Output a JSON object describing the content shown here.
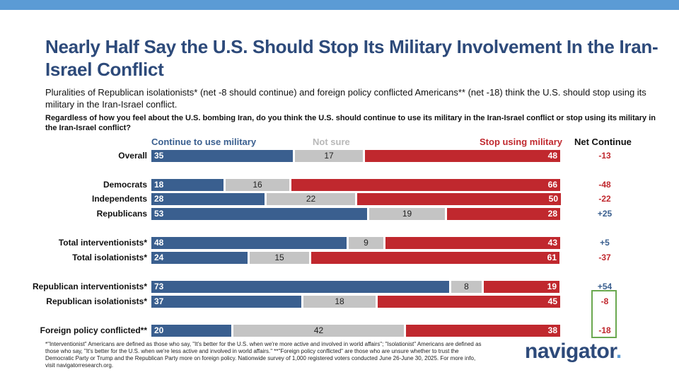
{
  "title": "Nearly Half Say the U.S. Should Stop Its Military Involvement In the Iran-Israel Conflict",
  "subtitle": "Pluralities of Republican isolationists* (net -8 should continue) and foreign policy conflicted Americans** (net -18) think the U.S. should stop using its military in the Iran-Israel conflict.",
  "question": "Regardless of how you feel about the U.S. bombing Iran, do you think the U.S. should continue to use its military in the Iran-Israel conflict or stop using its military in the Iran-Israel conflict?",
  "legend": {
    "continue": "Continue to use military",
    "unsure": "Not sure",
    "stop": "Stop using military",
    "net": "Net Continue"
  },
  "colors": {
    "continue": "#3a5f8f",
    "unsure": "#c4c4c4",
    "stop": "#c0282e",
    "title": "#2d4a7a",
    "highlight": "#6aa84f"
  },
  "chart_data": {
    "type": "bar",
    "orientation": "horizontal-stacked-100",
    "title": "Nearly Half Say the U.S. Should Stop Its Military Involvement In the Iran-Israel Conflict",
    "categories": [
      "Overall",
      "Democrats",
      "Independents",
      "Republicans",
      "Total interventionists*",
      "Total isolationists*",
      "Republican interventionists*",
      "Republican isolationists*",
      "Foreign policy conflicted**"
    ],
    "series": [
      {
        "name": "Continue to use military",
        "values": [
          35,
          18,
          28,
          53,
          48,
          24,
          73,
          37,
          20
        ]
      },
      {
        "name": "Not sure",
        "values": [
          17,
          16,
          22,
          19,
          9,
          15,
          8,
          18,
          42
        ]
      },
      {
        "name": "Stop using military",
        "values": [
          48,
          66,
          50,
          28,
          43,
          61,
          19,
          45,
          38
        ]
      }
    ],
    "net_continue": [
      "-13",
      "-48",
      "-22",
      "+25",
      "+5",
      "-37",
      "+54",
      "-8",
      "-18"
    ],
    "highlighted": [
      "Republican isolationists*",
      "Foreign policy conflicted**"
    ],
    "xlim": [
      0,
      100
    ]
  },
  "footnote": "*\"Interventionist\" Americans are defined as those who say, \"It's better for the U.S. when we're more active and involved in world affairs\"; \"Isolationist\" Americans are defined as those who say, \"It's better for the U.S. when we're less active and involved in world affairs.\" **\"Foreign policy conflicted\" are those who are unsure whether to trust the Democratic Party or Trump and the Republican Party more on foreign policy. Nationwide survey of 1,000 registered voters conducted June 26-June 30, 2025. For more info, visit navigatorresearch.org.",
  "logo": {
    "text": "navigator",
    "dot": "."
  }
}
